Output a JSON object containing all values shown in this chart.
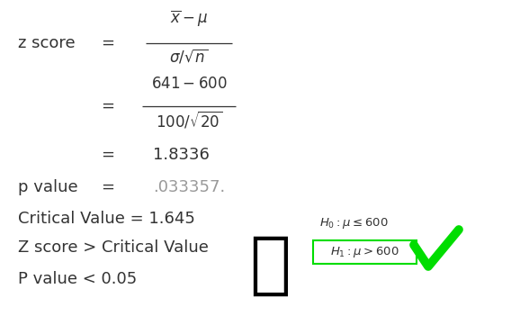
{
  "bg_color": "#ffffff",
  "fig_width": 5.78,
  "fig_height": 3.61,
  "dpi": 100,
  "zscore_label": "z score",
  "eq1_num": "$\\overline{x} - \\mu$",
  "eq1_den": "$\\sigma/\\sqrt{n}$",
  "eq2_num": "$641 - 600$",
  "eq2_den": "$100/\\sqrt{20}$",
  "eq3_result": "1.8336",
  "pvalue_label": "p value",
  "pvalue_result": ".033357.",
  "critical_label": "Critical Value = 1.645",
  "zscore_compare": "Z score > Critical Value",
  "pvalue_compare": "P value < 0.05",
  "h0_text": "$H_0 : \\mu \\leq 600$",
  "h1_text": "$H_1 : \\mu > 600$",
  "h1_box_color": "#00dd00",
  "checkmark_color": "#00dd00",
  "text_color": "#333333",
  "gray_color": "#999999",
  "black": "#111111"
}
